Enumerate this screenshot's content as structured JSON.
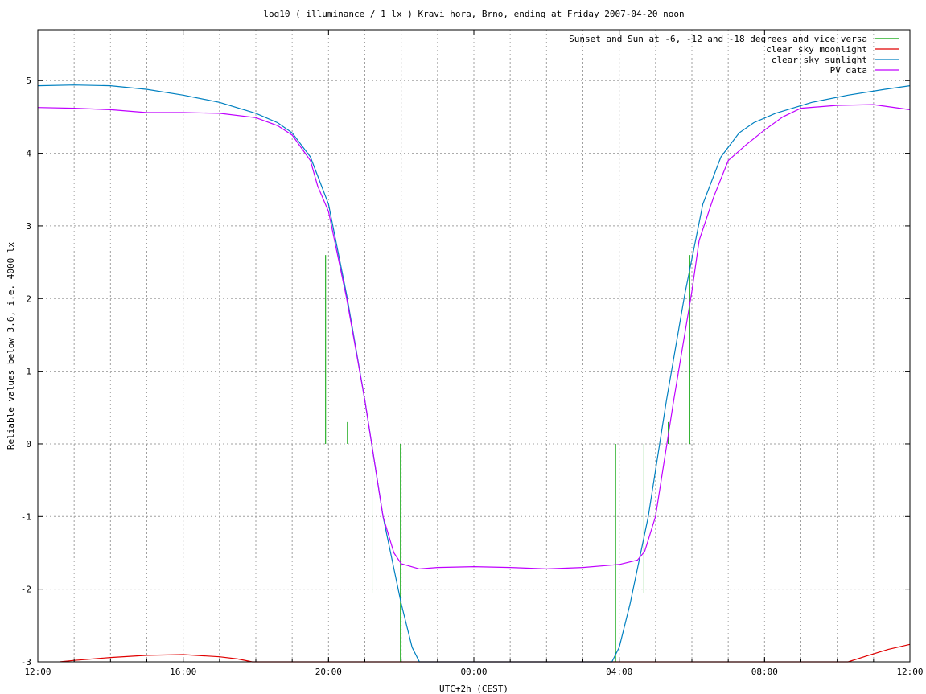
{
  "chart_data": {
    "type": "line",
    "title": "log10 ( illuminance / 1 lx ) Kravi hora, Brno, ending at Friday 2007-04-20 noon",
    "xlabel": "UTC+2h (CEST)",
    "ylabel": "Reliable values below 3.6, i.e. 4000 lx",
    "xlim": [
      0,
      24
    ],
    "ylim": [
      -3,
      5.7
    ],
    "x_units": "hours since 12:00 (UTC+2h)",
    "grid": true,
    "legend_position": "top-right",
    "x_ticks": [
      {
        "value": 0,
        "label": "12:00"
      },
      {
        "value": 4,
        "label": "16:00"
      },
      {
        "value": 8,
        "label": "20:00"
      },
      {
        "value": 12,
        "label": "00:00"
      },
      {
        "value": 16,
        "label": "04:00"
      },
      {
        "value": 20,
        "label": "08:00"
      },
      {
        "value": 24,
        "label": "12:00"
      }
    ],
    "y_ticks": [
      -3,
      -2,
      -1,
      0,
      1,
      2,
      3,
      4,
      5
    ],
    "series": [
      {
        "name": "Sunset and Sun at -6, -12 and -18 degrees and vice versa",
        "color": "#00a000",
        "kind": "impulses",
        "base": 0,
        "points": [
          [
            7.92,
            2.6
          ],
          [
            8.52,
            0.3
          ],
          [
            9.2,
            -2.05
          ],
          [
            9.98,
            -3.0
          ],
          [
            15.9,
            -3.0
          ],
          [
            16.68,
            -2.05
          ],
          [
            17.35,
            0.3
          ],
          [
            17.94,
            2.6
          ]
        ]
      },
      {
        "name": "clear sky moonlight",
        "color": "#e00000",
        "kind": "line",
        "points": [
          [
            0.6,
            -3.0
          ],
          [
            1,
            -2.98
          ],
          [
            2,
            -2.94
          ],
          [
            3,
            -2.91
          ],
          [
            4,
            -2.9
          ],
          [
            5,
            -2.93
          ],
          [
            5.5,
            -2.96
          ],
          [
            5.9,
            -3.0
          ],
          [
            22.3,
            -3.0
          ],
          [
            22.8,
            -2.92
          ],
          [
            23.4,
            -2.83
          ],
          [
            24,
            -2.76
          ]
        ]
      },
      {
        "name": "clear sky sunlight",
        "color": "#0080c0",
        "kind": "line",
        "points": [
          [
            0,
            4.93
          ],
          [
            1,
            4.94
          ],
          [
            2,
            4.93
          ],
          [
            3,
            4.88
          ],
          [
            4,
            4.8
          ],
          [
            5,
            4.7
          ],
          [
            6,
            4.55
          ],
          [
            6.6,
            4.42
          ],
          [
            7,
            4.28
          ],
          [
            7.5,
            3.95
          ],
          [
            8,
            3.3
          ],
          [
            8.5,
            2.05
          ],
          [
            9,
            0.6
          ],
          [
            9.5,
            -1.0
          ],
          [
            10,
            -2.2
          ],
          [
            10.3,
            -2.8
          ],
          [
            10.5,
            -3.0
          ],
          [
            15.8,
            -3.0
          ],
          [
            16.0,
            -2.8
          ],
          [
            16.3,
            -2.2
          ],
          [
            16.8,
            -1.0
          ],
          [
            17.3,
            0.6
          ],
          [
            17.8,
            2.05
          ],
          [
            18.3,
            3.3
          ],
          [
            18.8,
            3.95
          ],
          [
            19.3,
            4.28
          ],
          [
            19.7,
            4.42
          ],
          [
            20.3,
            4.55
          ],
          [
            21.3,
            4.7
          ],
          [
            22.3,
            4.8
          ],
          [
            23.3,
            4.88
          ],
          [
            24,
            4.93
          ]
        ]
      },
      {
        "name": "PV data",
        "color": "#c000ff",
        "kind": "line",
        "points": [
          [
            0,
            4.63
          ],
          [
            1,
            4.62
          ],
          [
            2,
            4.6
          ],
          [
            3,
            4.56
          ],
          [
            4,
            4.56
          ],
          [
            5,
            4.55
          ],
          [
            6,
            4.49
          ],
          [
            6.6,
            4.38
          ],
          [
            7,
            4.25
          ],
          [
            7.5,
            3.9
          ],
          [
            7.7,
            3.55
          ],
          [
            8,
            3.2
          ],
          [
            8.5,
            2.0
          ],
          [
            9,
            0.6
          ],
          [
            9.5,
            -1.0
          ],
          [
            9.8,
            -1.5
          ],
          [
            10,
            -1.65
          ],
          [
            10.5,
            -1.72
          ],
          [
            11,
            -1.7
          ],
          [
            12,
            -1.69
          ],
          [
            13,
            -1.7
          ],
          [
            14,
            -1.72
          ],
          [
            15,
            -1.7
          ],
          [
            16,
            -1.66
          ],
          [
            16.5,
            -1.6
          ],
          [
            16.7,
            -1.48
          ],
          [
            17,
            -1.0
          ],
          [
            17.5,
            0.6
          ],
          [
            18,
            2.1
          ],
          [
            18.2,
            2.8
          ],
          [
            18.6,
            3.4
          ],
          [
            19,
            3.9
          ],
          [
            19.5,
            4.12
          ],
          [
            20,
            4.32
          ],
          [
            20.5,
            4.5
          ],
          [
            21,
            4.62
          ],
          [
            22,
            4.66
          ],
          [
            23,
            4.67
          ],
          [
            24,
            4.6
          ]
        ]
      }
    ]
  }
}
